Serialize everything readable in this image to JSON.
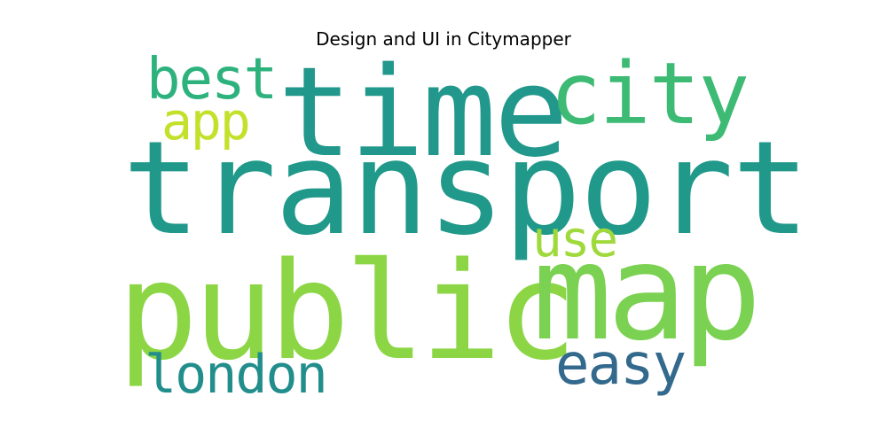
{
  "title": "Design and UI in Citymapper",
  "words": [
    {
      "text": "transport",
      "color": "#21998a"
    },
    {
      "text": "time",
      "color": "#21988b"
    },
    {
      "text": "public",
      "color": "#8cd645"
    },
    {
      "text": "map",
      "color": "#7bd151"
    },
    {
      "text": "city",
      "color": "#3dba74"
    },
    {
      "text": "best",
      "color": "#2db27d"
    },
    {
      "text": "app",
      "color": "#c3e02b"
    },
    {
      "text": "use",
      "color": "#9fd93c"
    },
    {
      "text": "easy",
      "color": "#33698c"
    },
    {
      "text": "london",
      "color": "#218e8c"
    }
  ]
}
